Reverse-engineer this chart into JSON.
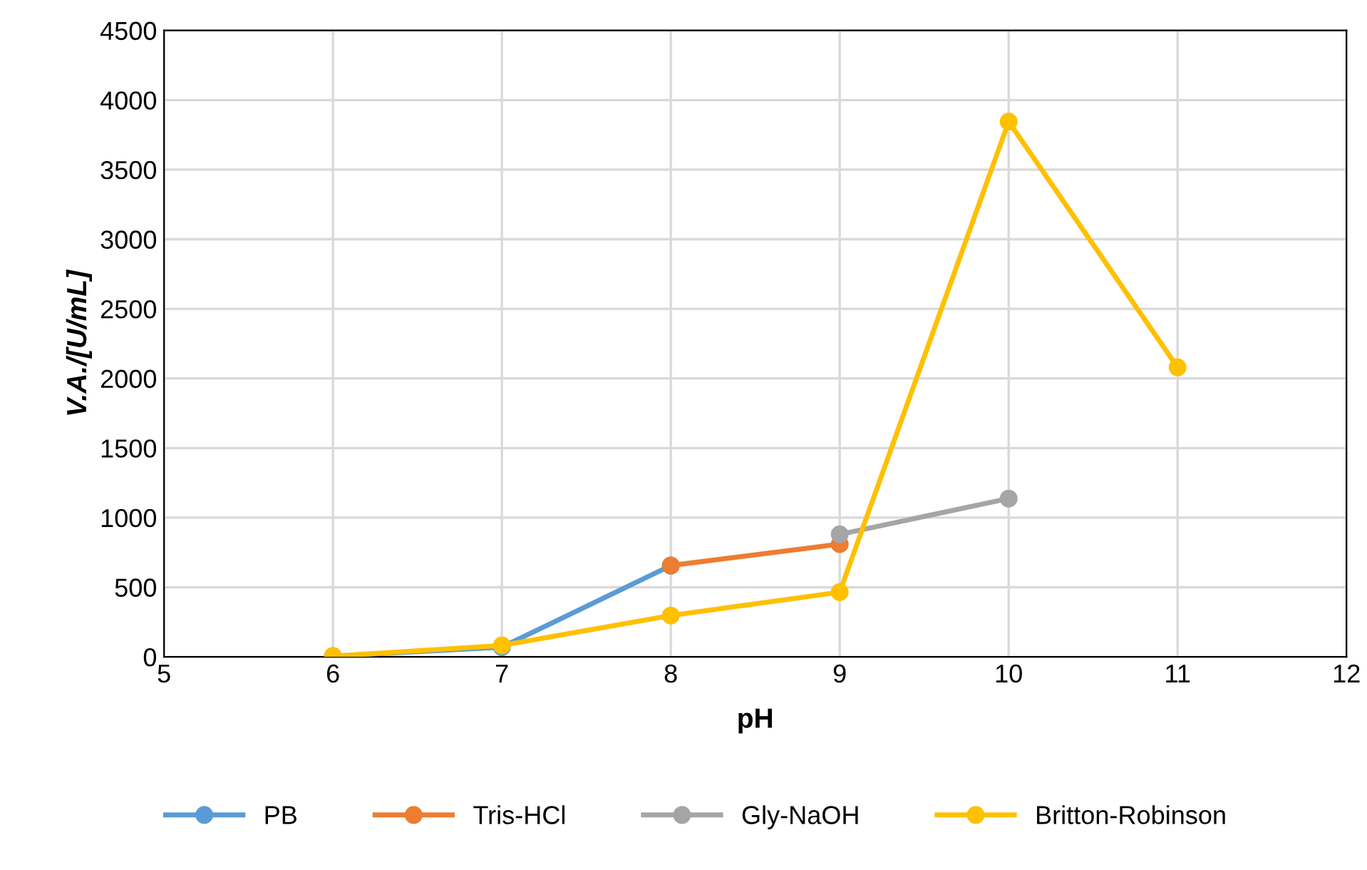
{
  "chart_data": {
    "type": "line",
    "xlabel": "pH",
    "ylabel": "V.A./[U/mL]",
    "xlim": [
      5,
      12
    ],
    "xticks": [
      5,
      6,
      7,
      8,
      9,
      10,
      11,
      12
    ],
    "ylim": [
      0,
      4500
    ],
    "yticks": [
      0,
      500,
      1000,
      1500,
      2000,
      2500,
      3000,
      3500,
      4000,
      4500
    ],
    "grid": true,
    "legend": "bottom",
    "marker": "circle",
    "line_style": "solid",
    "series": [
      {
        "name": "PB",
        "color": "#5b9bd5",
        "x": [
          6,
          7,
          8
        ],
        "values": [
          5,
          70,
          656
        ]
      },
      {
        "name": "Tris-HCl",
        "color": "#ed7d31",
        "x": [
          8,
          9
        ],
        "values": [
          656,
          810
        ]
      },
      {
        "name": "Gly-NaOH",
        "color": "#a5a5a5",
        "x": [
          9,
          10
        ],
        "values": [
          880,
          1137
        ]
      },
      {
        "name": "Britton-Robinson",
        "color": "#ffc000",
        "x": [
          6,
          7,
          8,
          9,
          10,
          11
        ],
        "values": [
          5,
          82,
          297,
          465,
          3845,
          2080
        ]
      }
    ]
  }
}
